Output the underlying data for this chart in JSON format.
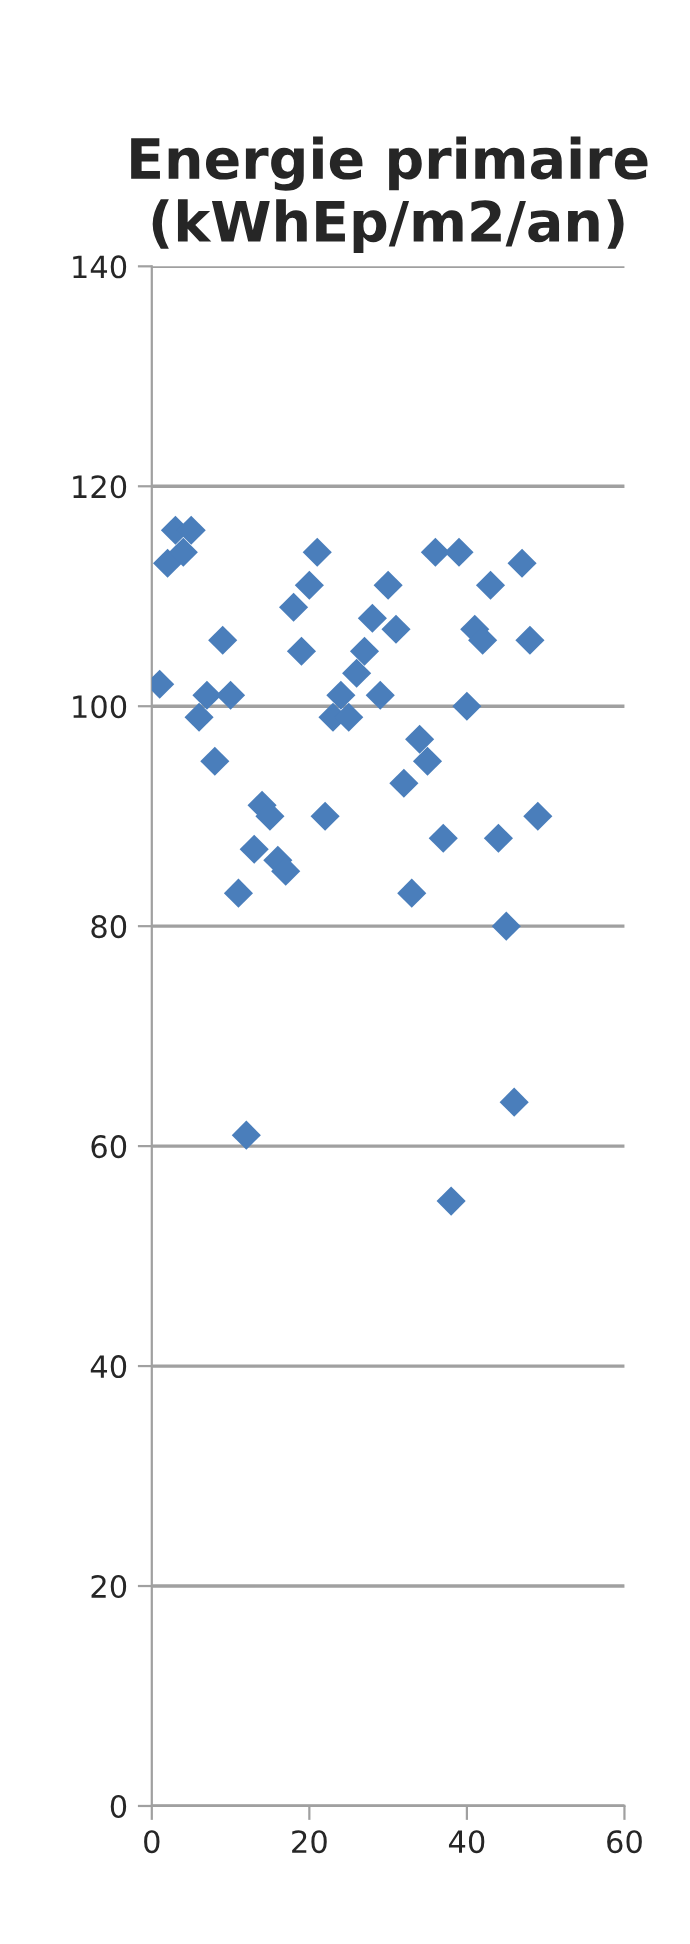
{
  "chart_data": {
    "type": "scatter",
    "title": "Energie primaire (kWhEp/m2/an)",
    "x": [
      1,
      2,
      3,
      4,
      5,
      6,
      7,
      8,
      9,
      10,
      11,
      12,
      13,
      14,
      15,
      16,
      17,
      18,
      19,
      20,
      21,
      22,
      23,
      24,
      25,
      26,
      27,
      28,
      29,
      30,
      31,
      32,
      33,
      34,
      35,
      36,
      37,
      38,
      39,
      40,
      41,
      42,
      43,
      44,
      45,
      46,
      47,
      48,
      49
    ],
    "values": [
      102,
      113,
      116,
      114,
      116,
      99,
      101,
      95,
      106,
      101,
      83,
      61,
      87,
      91,
      90,
      86,
      85,
      109,
      105,
      111,
      114,
      90,
      99,
      101,
      99,
      103,
      105,
      108,
      101,
      111,
      107,
      93,
      83,
      97,
      95,
      114,
      88,
      55,
      114,
      100,
      107,
      106,
      111,
      88,
      80,
      64,
      113,
      106,
      90
    ],
    "color": "#4a7ebb",
    "marker": "diamond",
    "xlim": [
      0,
      60
    ],
    "xticks": [
      0,
      20,
      40,
      60
    ],
    "ylim": [
      0,
      140
    ],
    "yticks": [
      0,
      20,
      40,
      60,
      80,
      100,
      120,
      140
    ],
    "grid": "y"
  }
}
